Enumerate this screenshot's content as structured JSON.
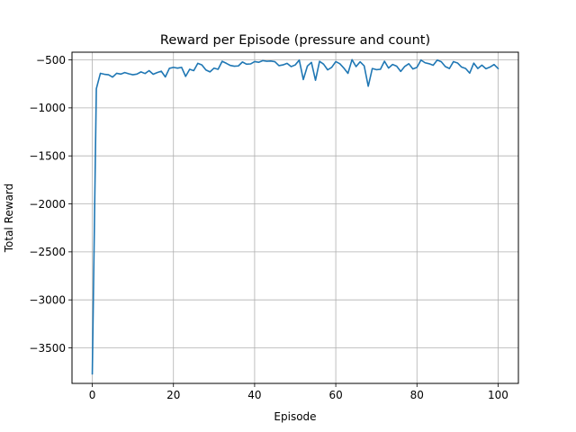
{
  "chart_data": {
    "type": "line",
    "title": "Reward per Episode (pressure and count)",
    "xlabel": "Episode",
    "ylabel": "Total Reward",
    "xlim": [
      -5,
      105
    ],
    "ylim": [
      -3870,
      -420
    ],
    "xticks": [
      0,
      20,
      40,
      60,
      80,
      100
    ],
    "xtick_labels": [
      "0",
      "20",
      "40",
      "60",
      "80",
      "100"
    ],
    "yticks": [
      -500,
      -1000,
      -1500,
      -2000,
      -2500,
      -3000,
      -3500
    ],
    "ytick_labels": [
      "−500",
      "−1000",
      "−1500",
      "−2000",
      "−2500",
      "−3000",
      "−3500"
    ],
    "grid": true,
    "legend": false,
    "line_color": "#1f77b4",
    "series": [
      {
        "x": [
          0,
          1,
          2,
          3,
          4,
          5,
          6,
          7,
          8,
          9,
          10,
          11,
          12,
          13,
          14,
          15,
          16,
          17,
          18,
          19,
          20,
          21,
          22,
          23,
          24,
          25,
          26,
          27,
          28,
          29,
          30,
          31,
          32,
          33,
          34,
          35,
          36,
          37,
          38,
          39,
          40,
          41,
          42,
          43,
          44,
          45,
          46,
          47,
          48,
          49,
          50,
          51,
          52,
          53,
          54,
          55,
          56,
          57,
          58,
          59,
          60,
          61,
          62,
          63,
          64,
          65,
          66,
          67,
          68,
          69,
          70,
          71,
          72,
          73,
          74,
          75,
          76,
          77,
          78,
          79,
          80,
          81,
          82,
          83,
          84,
          85,
          86,
          87,
          88,
          89,
          90,
          91,
          92,
          93,
          94,
          95,
          96,
          97,
          98,
          99,
          100
        ],
        "values": [
          -3770,
          -800,
          -640,
          -650,
          -655,
          -680,
          -640,
          -648,
          -632,
          -645,
          -655,
          -648,
          -625,
          -642,
          -612,
          -650,
          -632,
          -618,
          -678,
          -588,
          -578,
          -586,
          -578,
          -672,
          -598,
          -612,
          -536,
          -552,
          -605,
          -625,
          -586,
          -598,
          -515,
          -535,
          -558,
          -566,
          -563,
          -522,
          -545,
          -542,
          -518,
          -525,
          -508,
          -514,
          -512,
          -519,
          -560,
          -552,
          -536,
          -570,
          -553,
          -502,
          -705,
          -565,
          -526,
          -712,
          -515,
          -545,
          -604,
          -578,
          -518,
          -540,
          -586,
          -640,
          -498,
          -570,
          -520,
          -562,
          -775,
          -590,
          -602,
          -598,
          -514,
          -585,
          -548,
          -565,
          -620,
          -568,
          -540,
          -595,
          -578,
          -502,
          -530,
          -540,
          -556,
          -502,
          -520,
          -570,
          -590,
          -518,
          -532,
          -575,
          -590,
          -638,
          -534,
          -590,
          -555,
          -592,
          -575,
          -548,
          -590
        ]
      }
    ]
  }
}
